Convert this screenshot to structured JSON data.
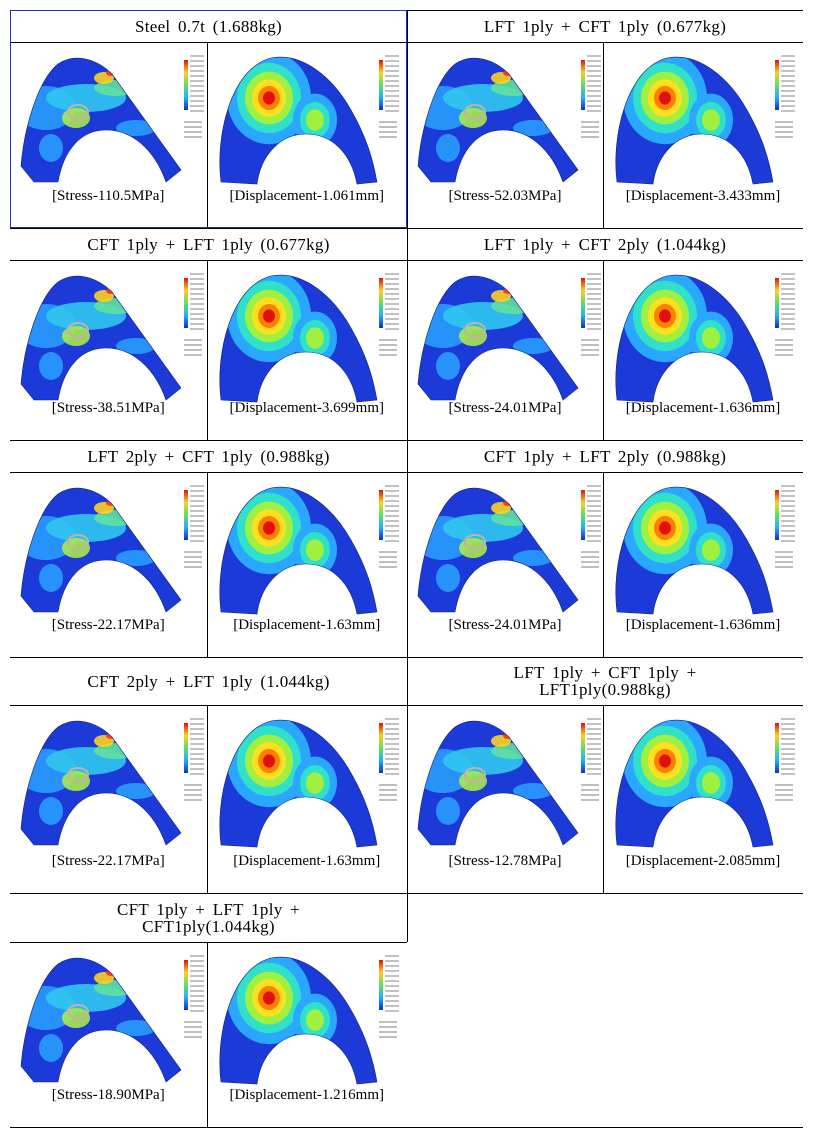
{
  "table": {
    "rows": [
      {
        "cells": [
          {
            "title": "Steel 0.7t (1.688kg)",
            "stress": "[Stress-110.5MPa]",
            "displacement": "[Displacement-1.061mm]"
          },
          {
            "title": "LFT 1ply + CFT 1ply (0.677kg)",
            "stress": "[Stress-52.03MPa]",
            "displacement": "[Displacement-3.433mm]"
          }
        ]
      },
      {
        "cells": [
          {
            "title": "CFT 1ply + LFT 1ply (0.677kg)",
            "stress": "[Stress-38.51MPa]",
            "displacement": "[Displacement-3.699mm]"
          },
          {
            "title": "LFT 1ply + CFT 2ply (1.044kg)",
            "stress": "[Stress-24.01MPa]",
            "displacement": "[Displacement-1.636mm]"
          }
        ]
      },
      {
        "cells": [
          {
            "title": "LFT 2ply + CFT 1ply (0.988kg)",
            "stress": "[Stress-22.17MPa]",
            "displacement": "[Displacement-1.63mm]"
          },
          {
            "title": "CFT 1ply + LFT 2ply (0.988kg)",
            "stress": "[Stress-24.01MPa]",
            "displacement": "[Displacement-1.636mm]"
          }
        ]
      },
      {
        "cells": [
          {
            "title": "CFT 2ply + LFT 1ply (1.044kg)",
            "stress": "[Stress-22.17MPa]",
            "displacement": "[Displacement-1.63mm]"
          },
          {
            "title": "LFT 1ply + CFT 1ply + LFT1ply(0.988kg)",
            "stress": "[Stress-12.78MPa]",
            "displacement": "[Displacement-2.085mm]"
          }
        ]
      },
      {
        "cells": [
          {
            "title": "CFT 1ply + LFT 1ply + CFT1ply(1.044kg)",
            "stress": "[Stress-18.90MPa]",
            "displacement": "[Displacement-1.216mm]"
          }
        ]
      }
    ]
  }
}
